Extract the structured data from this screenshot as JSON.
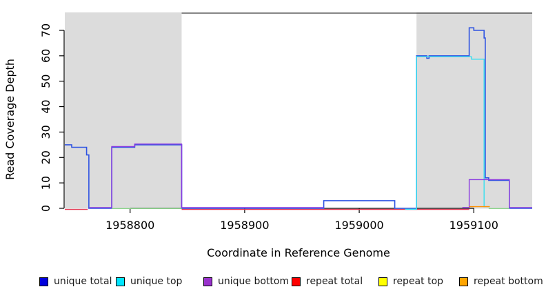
{
  "chart_data": {
    "type": "line",
    "subtype": "step-coverage-plot",
    "title": "",
    "xlabel": "Coordinate in Reference Genome",
    "ylabel": "Read Coverage Depth",
    "x_domain": [
      1958743,
      1959151
    ],
    "y_domain": [
      0,
      77
    ],
    "x_ticks": [
      1958800,
      1958900,
      1959000,
      1959100
    ],
    "y_ticks": [
      0,
      10,
      20,
      30,
      40,
      50,
      60,
      70
    ],
    "grid": false,
    "shade_color": "#dcdcdc",
    "shaded_regions": [
      [
        1958743,
        1958845
      ],
      [
        1959050,
        1959151
      ]
    ],
    "encoding": "series points are [coordinate, depth]; depth holds until next coordinate; null depth = pen up / end of segment",
    "series": [
      {
        "name": "unique total",
        "color": "#2e53e2",
        "visible": true,
        "points": [
          [
            1958743,
            25
          ],
          [
            1958749,
            24
          ],
          [
            1958762,
            21
          ],
          [
            1958764,
            0
          ],
          [
            1958784,
            24
          ],
          [
            1958804,
            25
          ],
          [
            1958845,
            0
          ],
          [
            1958969,
            3
          ],
          [
            1959031,
            0
          ],
          [
            1959050,
            60
          ],
          [
            1959059,
            59
          ],
          [
            1959061,
            60
          ],
          [
            1959096,
            71
          ],
          [
            1959100,
            70
          ],
          [
            1959109,
            67
          ],
          [
            1959110,
            12
          ],
          [
            1959113,
            11
          ],
          [
            1959131,
            0
          ],
          [
            1959151,
            null
          ]
        ]
      },
      {
        "name": "unique top",
        "color": "#35dff0",
        "visible": true,
        "points": [
          [
            1959040,
            0
          ],
          [
            1959050,
            60
          ],
          [
            1959098,
            59
          ],
          [
            1959109,
            1
          ],
          [
            1959114,
            null
          ]
        ]
      },
      {
        "name": "unique bottom",
        "color": "#8a3ae0",
        "visible": true,
        "points": [
          [
            1958764,
            0
          ],
          [
            1958784,
            24
          ],
          [
            1958804,
            25
          ],
          [
            1958845,
            0
          ],
          [
            1958969,
            null
          ],
          [
            1959090,
            0
          ],
          [
            1959096,
            11
          ],
          [
            1959131,
            0
          ],
          [
            1959151,
            null
          ]
        ]
      },
      {
        "name": "repeat total",
        "color": "#e43b55",
        "visible": true,
        "points": [
          [
            1958743,
            0
          ],
          [
            1958763,
            null
          ],
          [
            1958845,
            0
          ],
          [
            1959096,
            null
          ]
        ]
      },
      {
        "name": "repeat top",
        "color": "#ffe800",
        "visible": false,
        "points": [
          [
            1958743,
            0
          ],
          [
            1959151,
            null
          ]
        ]
      },
      {
        "name": "repeat bottom",
        "color": "#ff9100",
        "visible": true,
        "points": [
          [
            1959096,
            0.5
          ],
          [
            1959114,
            null
          ]
        ]
      }
    ],
    "baseline_overlaps": [
      {
        "from": 1958784,
        "to": 1958845,
        "color": "#8cd48c",
        "note": "light-green overlap line at depth 0 under unique-bottom block"
      },
      {
        "from": 1959113,
        "to": 1959131,
        "color": "#8cd48c",
        "note": "light-green overlap line at depth 0 right of peak"
      }
    ]
  },
  "legend": {
    "items": [
      {
        "label": "unique total",
        "swatch_color": "#0000dd"
      },
      {
        "label": "unique top",
        "swatch_color": "#00e5ff"
      },
      {
        "label": "unique bottom",
        "swatch_color": "#9932cc"
      },
      {
        "label": "repeat total",
        "swatch_color": "#ff0000"
      },
      {
        "label": "repeat top",
        "swatch_color": "#ffff00"
      },
      {
        "label": "repeat bottom",
        "swatch_color": "#ffa500"
      }
    ]
  }
}
